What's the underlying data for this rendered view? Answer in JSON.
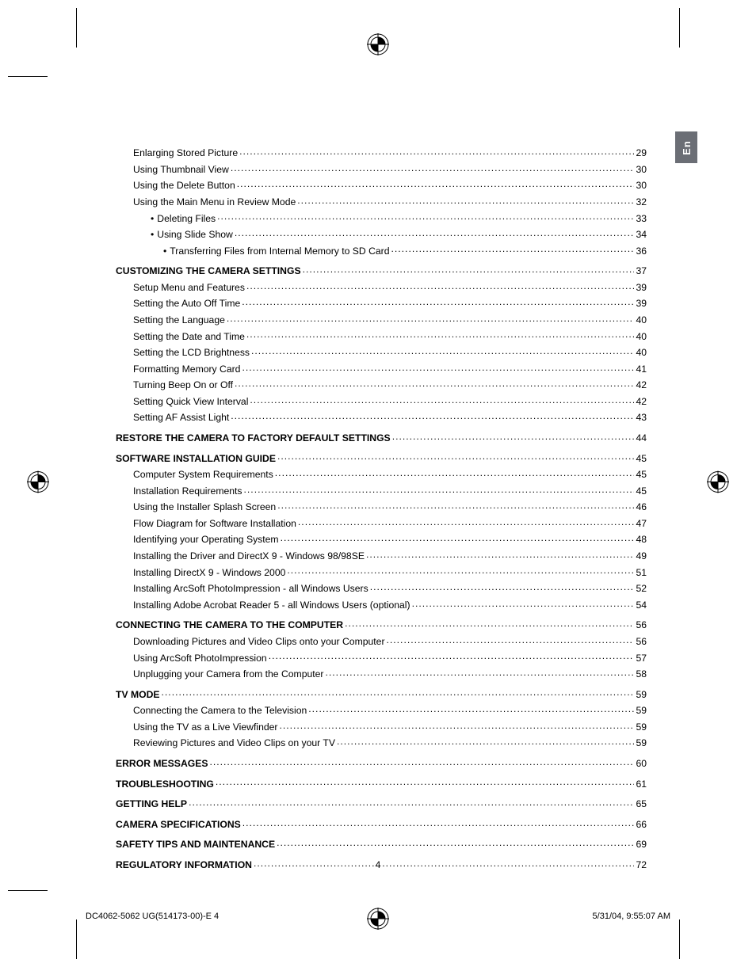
{
  "lang_tab": "En",
  "page_number": "4",
  "footer": {
    "left": "DC4062-5062 UG(514173-00)-E   4",
    "right": "5/31/04, 9:55:07 AM"
  },
  "reg_mark": {
    "stroke": "#000000",
    "fill_w": "#ffffff",
    "fill_b": "#000000"
  },
  "toc": [
    {
      "label": "Enlarging Stored Picture",
      "page": "29",
      "indent": 1,
      "bold": false,
      "bullet": false,
      "gap": false
    },
    {
      "label": "Using Thumbnail View",
      "page": "30",
      "indent": 1,
      "bold": false,
      "bullet": false,
      "gap": false
    },
    {
      "label": "Using the Delete Button",
      "page": "30",
      "indent": 1,
      "bold": false,
      "bullet": false,
      "gap": false
    },
    {
      "label": "Using the Main Menu in Review Mode",
      "page": "32",
      "indent": 1,
      "bold": false,
      "bullet": false,
      "gap": false
    },
    {
      "label": "Deleting Files",
      "page": "33",
      "indent": 2,
      "bold": false,
      "bullet": true,
      "gap": false
    },
    {
      "label": "Using Slide Show",
      "page": "34",
      "indent": 2,
      "bold": false,
      "bullet": true,
      "gap": false
    },
    {
      "label": "Transferring Files from Internal Memory to SD Card",
      "page": "36",
      "indent": 3,
      "bold": false,
      "bullet": true,
      "gap": false
    },
    {
      "label": "CUSTOMIZING THE CAMERA SETTINGS",
      "page": "37",
      "indent": 0,
      "bold": true,
      "bullet": false,
      "gap": true
    },
    {
      "label": "Setup Menu and Features",
      "page": "39",
      "indent": 1,
      "bold": false,
      "bullet": false,
      "gap": false
    },
    {
      "label": "Setting the Auto Off Time",
      "page": "39",
      "indent": 1,
      "bold": false,
      "bullet": false,
      "gap": false
    },
    {
      "label": "Setting the Language",
      "page": "40",
      "indent": 1,
      "bold": false,
      "bullet": false,
      "gap": false
    },
    {
      "label": "Setting the Date and Time",
      "page": "40",
      "indent": 1,
      "bold": false,
      "bullet": false,
      "gap": false
    },
    {
      "label": "Setting the LCD Brightness",
      "page": "40",
      "indent": 1,
      "bold": false,
      "bullet": false,
      "gap": false
    },
    {
      "label": "Formatting Memory Card",
      "page": "41",
      "indent": 1,
      "bold": false,
      "bullet": false,
      "gap": false
    },
    {
      "label": "Turning Beep On or Off",
      "page": "42",
      "indent": 1,
      "bold": false,
      "bullet": false,
      "gap": false
    },
    {
      "label": "Setting Quick View Interval",
      "page": "42",
      "indent": 1,
      "bold": false,
      "bullet": false,
      "gap": false
    },
    {
      "label": "Setting AF Assist Light",
      "page": "43",
      "indent": 1,
      "bold": false,
      "bullet": false,
      "gap": false
    },
    {
      "label": "RESTORE THE CAMERA TO FACTORY DEFAULT SETTINGS",
      "page": "44",
      "indent": 0,
      "bold": true,
      "bullet": false,
      "gap": true
    },
    {
      "label": "SOFTWARE INSTALLATION GUIDE",
      "page": "45",
      "indent": 0,
      "bold": true,
      "bullet": false,
      "gap": true
    },
    {
      "label": "Computer System Requirements",
      "page": "45",
      "indent": 1,
      "bold": false,
      "bullet": false,
      "gap": false
    },
    {
      "label": "Installation Requirements",
      "page": "45",
      "indent": 1,
      "bold": false,
      "bullet": false,
      "gap": false
    },
    {
      "label": "Using the Installer Splash Screen",
      "page": "46",
      "indent": 1,
      "bold": false,
      "bullet": false,
      "gap": false
    },
    {
      "label": "Flow Diagram for Software Installation",
      "page": "47",
      "indent": 1,
      "bold": false,
      "bullet": false,
      "gap": false
    },
    {
      "label": "Identifying your Operating System",
      "page": "48",
      "indent": 1,
      "bold": false,
      "bullet": false,
      "gap": false
    },
    {
      "label": "Installing the Driver and DirectX 9 - Windows 98/98SE",
      "page": "49",
      "indent": 1,
      "bold": false,
      "bullet": false,
      "gap": false
    },
    {
      "label": "Installing DirectX 9 - Windows 2000",
      "page": "51",
      "indent": 1,
      "bold": false,
      "bullet": false,
      "gap": false
    },
    {
      "label": "Installing ArcSoft PhotoImpression - all Windows Users",
      "page": "52",
      "indent": 1,
      "bold": false,
      "bullet": false,
      "gap": false
    },
    {
      "label": "Installing Adobe Acrobat Reader 5 - all Windows Users (optional)",
      "page": "54",
      "indent": 1,
      "bold": false,
      "bullet": false,
      "gap": false
    },
    {
      "label": "CONNECTING THE CAMERA TO THE COMPUTER",
      "page": "56",
      "indent": 0,
      "bold": true,
      "bullet": false,
      "gap": true
    },
    {
      "label": "Downloading Pictures and Video Clips onto your Computer",
      "page": "56",
      "indent": 1,
      "bold": false,
      "bullet": false,
      "gap": false
    },
    {
      "label": "Using ArcSoft PhotoImpression",
      "page": "57",
      "indent": 1,
      "bold": false,
      "bullet": false,
      "gap": false
    },
    {
      "label": "Unplugging your Camera from the Computer",
      "page": "58",
      "indent": 1,
      "bold": false,
      "bullet": false,
      "gap": false
    },
    {
      "label": "TV MODE",
      "page": "59",
      "indent": 0,
      "bold": true,
      "bullet": false,
      "gap": true
    },
    {
      "label": "Connecting the Camera to the Television",
      "page": "59",
      "indent": 1,
      "bold": false,
      "bullet": false,
      "gap": false
    },
    {
      "label": "Using the TV as a Live Viewfinder",
      "page": "59",
      "indent": 1,
      "bold": false,
      "bullet": false,
      "gap": false
    },
    {
      "label": "Reviewing Pictures and Video Clips on your TV",
      "page": "59",
      "indent": 1,
      "bold": false,
      "bullet": false,
      "gap": false
    },
    {
      "label": "ERROR MESSAGES",
      "page": "60",
      "indent": 0,
      "bold": true,
      "bullet": false,
      "gap": true
    },
    {
      "label": "TROUBLESHOOTING",
      "page": "61",
      "indent": 0,
      "bold": true,
      "bullet": false,
      "gap": true
    },
    {
      "label": "GETTING HELP",
      "page": "65",
      "indent": 0,
      "bold": true,
      "bullet": false,
      "gap": true
    },
    {
      "label": "CAMERA SPECIFICATIONS",
      "page": "66",
      "indent": 0,
      "bold": true,
      "bullet": false,
      "gap": true
    },
    {
      "label": "SAFETY TIPS AND MAINTENANCE",
      "page": "69",
      "indent": 0,
      "bold": true,
      "bullet": false,
      "gap": true
    },
    {
      "label": "REGULATORY INFORMATION",
      "page": "72",
      "indent": 0,
      "bold": true,
      "bullet": false,
      "gap": true
    }
  ]
}
